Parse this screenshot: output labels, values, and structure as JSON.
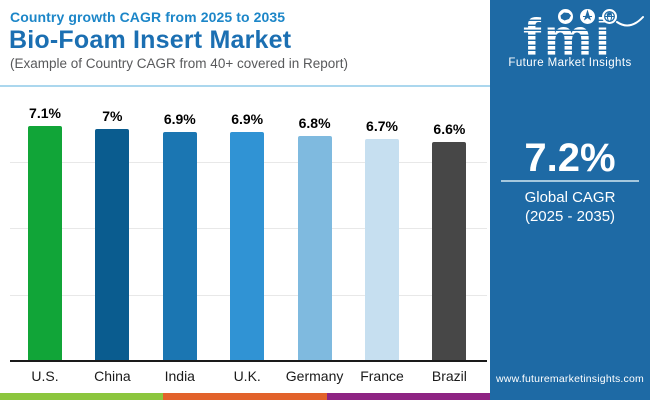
{
  "header": {
    "subtitle": "Country growth CAGR from 2025 to 2035",
    "title": "Bio-Foam Insert Market",
    "note": "(Example of Country CAGR from 40+ covered in Report)"
  },
  "chart_data": {
    "type": "bar",
    "categories": [
      "U.S.",
      "China",
      "India",
      "U.K.",
      "Germany",
      "France",
      "Brazil"
    ],
    "values": [
      7.1,
      7.0,
      6.9,
      6.9,
      6.8,
      6.7,
      6.6
    ],
    "value_labels": [
      "7.1%",
      "7%",
      "6.9%",
      "6.9%",
      "6.8%",
      "6.7%",
      "6.6%"
    ],
    "bar_colors": [
      "#11A538",
      "#0A5C8F",
      "#1B76B2",
      "#3093D4",
      "#7FBADF",
      "#C6DFF0",
      "#474747"
    ],
    "title": "Bio-Foam Insert Market",
    "xlabel": "",
    "ylabel": "",
    "ylim": [
      0,
      8
    ],
    "gridline_values": [
      2,
      4,
      6
    ],
    "grid": true,
    "legend": false
  },
  "panel": {
    "logo_text": "fmi",
    "logo_caption": "Future Market Insights",
    "stat_value": "7.2%",
    "stat_label_line1": "Global CAGR",
    "stat_label_line2": "(2025 - 2035)",
    "website": "www.futuremarketinsights.com",
    "bg_color": "#1E6AA5",
    "logo_icons": [
      "map-icon",
      "compass-icon",
      "globe-icon"
    ]
  },
  "footer_stripe_colors": [
    "#8CC63E",
    "#E2622B",
    "#8E2483"
  ]
}
